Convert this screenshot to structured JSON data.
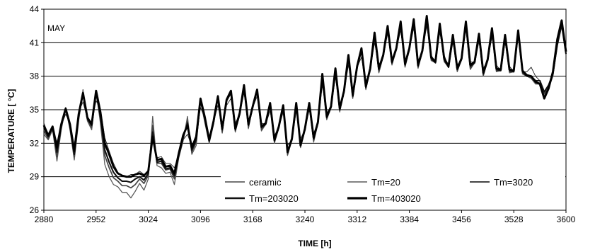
{
  "chart_data": {
    "type": "line",
    "title": "",
    "annotation": "MAY",
    "xlabel": "TIME [h]",
    "ylabel": "TEMPERATURE [ °C]",
    "xlim": [
      2880,
      3600
    ],
    "ylim": [
      26,
      44
    ],
    "xticks": [
      2880,
      2952,
      3024,
      3096,
      3168,
      3240,
      3312,
      3384,
      3456,
      3528,
      3600
    ],
    "yticks": [
      26,
      29,
      32,
      35,
      38,
      41,
      44
    ],
    "grid": "horizontal",
    "legend_position": "bottom-inside",
    "base": {
      "x": [
        2880,
        2886,
        2892,
        2898,
        2904,
        2910,
        2916,
        2922,
        2928,
        2934,
        2940,
        2946,
        2952,
        2958,
        2964,
        2970,
        2976,
        2982,
        2988,
        2994,
        3000,
        3006,
        3012,
        3018,
        3024,
        3030,
        3036,
        3042,
        3048,
        3054,
        3060,
        3066,
        3072,
        3078,
        3084,
        3090,
        3096,
        3102,
        3108,
        3114,
        3120,
        3126,
        3132,
        3138,
        3144,
        3150,
        3156,
        3162,
        3168,
        3174,
        3180,
        3186,
        3192,
        3198,
        3204,
        3210,
        3216,
        3222,
        3228,
        3234,
        3240,
        3246,
        3252,
        3258,
        3264,
        3270,
        3276,
        3282,
        3288,
        3294,
        3300,
        3306,
        3312,
        3318,
        3324,
        3330,
        3336,
        3342,
        3348,
        3354,
        3360,
        3366,
        3372,
        3378,
        3384,
        3390,
        3396,
        3402,
        3408,
        3414,
        3420,
        3426,
        3432,
        3438,
        3444,
        3450,
        3456,
        3462,
        3468,
        3474,
        3480,
        3486,
        3492,
        3498,
        3504,
        3510,
        3516,
        3522,
        3528,
        3534,
        3540,
        3546,
        3552,
        3558,
        3564,
        3570,
        3576,
        3582,
        3588,
        3594,
        3600
      ],
      "y": [
        33.4,
        32.6,
        33.4,
        31.6,
        33.6,
        35.0,
        33.6,
        31.2,
        34.5,
        36.2,
        34.2,
        33.6,
        36.4,
        34.6,
        31.7,
        30.8,
        29.9,
        29.3,
        29.0,
        29.0,
        29.1,
        29.2,
        29.2,
        29.0,
        29.4,
        32.6,
        30.4,
        30.6,
        29.9,
        30.0,
        29.4,
        31.0,
        32.5,
        33.6,
        31.4,
        32.4,
        35.8,
        34.2,
        32.2,
        33.9,
        36.0,
        33.2,
        35.8,
        36.4,
        33.2,
        34.6,
        37.0,
        33.6,
        35.2,
        36.6,
        33.4,
        33.7,
        35.4,
        32.2,
        33.4,
        35.2,
        31.2,
        32.3,
        35.4,
        31.8,
        33.2,
        35.4,
        32.4,
        33.8,
        37.9,
        34.3,
        35.2,
        38.4,
        35.0,
        36.6,
        39.6,
        36.2,
        38.8,
        40.2,
        37.0,
        38.6,
        41.6,
        38.6,
        39.8,
        42.2,
        39.2,
        40.4,
        42.6,
        39.0,
        40.4,
        42.8,
        38.9,
        40.2,
        43.1,
        39.6,
        39.2,
        42.4,
        39.5,
        38.8,
        41.4,
        38.6,
        39.5,
        42.6,
        38.9,
        39.2,
        41.5,
        38.2,
        39.4,
        42.0,
        38.6,
        38.5,
        41.4,
        38.5,
        38.4,
        41.8,
        38.4,
        38.0,
        38.0,
        37.6,
        37.6,
        36.6,
        37.2,
        38.2,
        40.8,
        42.6,
        40.0
      ]
    },
    "series": [
      {
        "name": "ceramic",
        "color": "#222222",
        "width": 0.9,
        "offsets": [
          0.4,
          0.1,
          0.0,
          0.5,
          0.0,
          -0.4,
          0.2,
          0.6,
          0.3,
          -0.5,
          0.0,
          0.3,
          -0.6,
          0.5,
          0.8,
          0.5,
          0.3,
          0.1,
          0.0,
          0.0,
          0.1,
          0.0,
          0.3,
          0.2,
          0.0,
          -0.3,
          0.3,
          0.2,
          0.3,
          0.2,
          0.4,
          0.0,
          -0.2,
          -0.8,
          0.3,
          0.0,
          -0.6,
          0.0,
          0.3,
          0.0,
          -0.6,
          0.4,
          -0.4,
          -0.4,
          0.6,
          0.0,
          -0.5,
          0.4,
          0.0,
          -0.4,
          0.4,
          0.0,
          -0.5,
          0.5,
          0.0,
          -0.4,
          0.6,
          0.0,
          -0.5,
          0.6,
          0.0,
          -0.4,
          0.5,
          0.0,
          -0.7,
          0.4,
          0.0,
          -0.5,
          0.4,
          0.0,
          -0.6,
          0.5,
          0.0,
          -0.5,
          0.5,
          0.0,
          -0.6,
          0.4,
          0.0,
          -0.4,
          0.4,
          0.0,
          -0.5,
          0.4,
          0.0,
          -0.5,
          0.5,
          0.0,
          -0.6,
          0.3,
          0.0,
          -0.5,
          0.4,
          0.0,
          -0.4,
          0.4,
          0.0,
          -0.4,
          0.4,
          0.0,
          -0.4,
          0.5,
          0.0,
          -0.5,
          0.4,
          0.0,
          -0.4,
          0.4,
          0.0,
          0.2,
          0.0,
          0.4,
          0.8,
          0.4,
          0.0,
          -0.2,
          -0.4,
          0.0
        ]
      },
      {
        "name": "Tm=20",
        "color": "#5a5a5a",
        "width": 1.3,
        "offsets": [
          -0.6,
          -0.3,
          -0.2,
          -1.2,
          -0.4,
          0.2,
          -0.4,
          -0.7,
          -0.5,
          0.6,
          -0.2,
          -0.4,
          0.3,
          -0.8,
          -1.6,
          -1.8,
          -1.6,
          -1.2,
          -1.4,
          -1.4,
          -2.0,
          -1.5,
          -0.8,
          -1.2,
          -0.6,
          1.8,
          -0.4,
          -0.8,
          -0.6,
          -0.6,
          -1.1,
          -0.3,
          -0.3,
          0.8,
          -0.4,
          -0.6,
          0.0,
          -0.4,
          -0.2,
          -0.2,
          0.3,
          -0.3,
          0.1,
          0.3,
          -0.2,
          0.0,
          0.2,
          -0.3,
          0.2,
          0.2,
          -0.3,
          0.0,
          0.2,
          -0.2,
          0.0,
          0.2,
          -0.3,
          0.0,
          0.2,
          -0.2,
          0.0,
          0.2,
          -0.3,
          0.0,
          0.2,
          -0.2,
          0.0,
          0.2,
          -0.2,
          0.0,
          0.2,
          -0.2,
          0.0,
          0.3,
          -0.2,
          0.0,
          0.2,
          -0.3,
          0.0,
          0.2,
          -0.2,
          0.0,
          0.2,
          -0.2,
          0.0,
          0.2,
          -0.2,
          0.0,
          0.3,
          -0.2,
          0.0,
          0.2,
          -0.2,
          0.0,
          0.2,
          -0.2,
          0.0,
          0.2,
          -0.3,
          0.0,
          0.2,
          -0.2,
          0.0,
          0.2,
          -0.2,
          0.0,
          0.2,
          -0.2,
          0.0,
          0.2,
          -0.2,
          0.0,
          -0.2,
          -0.3,
          -0.3,
          -0.4,
          -0.3,
          -0.2,
          0.0,
          0.3,
          0.0
        ]
      },
      {
        "name": "Tm=3020",
        "color": "#444444",
        "width": 1.7,
        "offsets": [
          -0.3,
          -0.2,
          -0.1,
          -0.8,
          -0.2,
          0.1,
          -0.2,
          -0.4,
          -0.3,
          0.3,
          -0.1,
          -0.2,
          0.2,
          -0.4,
          -0.8,
          -1.0,
          -1.0,
          -0.7,
          -0.8,
          -0.8,
          -1.1,
          -0.9,
          -0.4,
          -0.6,
          -0.3,
          1.0,
          -0.2,
          -0.4,
          -0.3,
          -0.3,
          -0.6,
          -0.2,
          -0.2,
          0.4,
          -0.2,
          -0.3,
          0.0,
          -0.2,
          -0.1,
          -0.1,
          0.2,
          -0.2,
          0.1,
          0.2,
          -0.1,
          0.0,
          0.1,
          -0.2,
          0.1,
          0.1,
          -0.2,
          0.0,
          0.1,
          -0.1,
          0.0,
          0.1,
          -0.2,
          0.0,
          0.1,
          -0.1,
          0.0,
          0.1,
          -0.2,
          0.0,
          0.1,
          -0.1,
          0.0,
          0.1,
          -0.1,
          0.0,
          0.1,
          -0.1,
          0.0,
          0.2,
          -0.1,
          0.0,
          0.1,
          -0.2,
          0.0,
          0.1,
          -0.1,
          0.0,
          0.1,
          -0.1,
          0.0,
          0.1,
          -0.1,
          0.0,
          0.2,
          -0.1,
          0.0,
          0.1,
          -0.1,
          0.0,
          0.1,
          -0.1,
          0.0,
          0.1,
          -0.2,
          0.0,
          0.1,
          -0.1,
          0.0,
          0.1,
          -0.1,
          0.0,
          0.1,
          -0.1,
          0.0,
          0.1,
          -0.1,
          0.0,
          -0.1,
          -0.2,
          -0.2,
          -0.2,
          -0.2,
          -0.1,
          0.0,
          0.2,
          0.0
        ]
      },
      {
        "name": "Tm=203020",
        "color": "#111111",
        "width": 2.1,
        "offsets": [
          0.0,
          0.0,
          0.0,
          -0.4,
          0.0,
          0.0,
          0.0,
          -0.2,
          0.0,
          0.2,
          0.0,
          0.0,
          0.1,
          -0.2,
          -0.3,
          -0.5,
          -0.5,
          -0.4,
          -0.4,
          -0.4,
          -0.6,
          -0.4,
          -0.2,
          -0.3,
          -0.1,
          0.4,
          -0.1,
          -0.2,
          -0.2,
          -0.2,
          -0.3,
          -0.1,
          0.0,
          0.2,
          0.0,
          -0.1,
          0.0,
          0.0,
          0.0,
          0.0,
          0.1,
          0.0,
          0.0,
          0.1,
          0.0,
          0.0,
          0.1,
          0.0,
          0.0,
          0.1,
          0.0,
          0.0,
          0.1,
          0.0,
          0.0,
          0.1,
          0.0,
          0.0,
          0.1,
          0.0,
          0.0,
          0.1,
          0.0,
          0.0,
          0.1,
          0.0,
          0.0,
          0.1,
          0.0,
          0.0,
          0.1,
          0.0,
          0.0,
          0.1,
          0.0,
          0.0,
          0.1,
          0.0,
          0.0,
          0.1,
          0.0,
          0.0,
          0.1,
          0.0,
          0.0,
          0.1,
          0.0,
          0.0,
          0.1,
          0.0,
          0.0,
          0.1,
          0.0,
          0.0,
          0.1,
          0.0,
          0.0,
          0.1,
          0.0,
          0.0,
          0.1,
          0.0,
          0.0,
          0.1,
          0.0,
          0.0,
          0.1,
          0.0,
          0.0,
          0.1,
          0.0,
          0.0,
          0.0,
          0.0,
          0.0,
          0.0,
          0.0,
          0.0,
          0.0,
          0.0,
          0.0
        ]
      },
      {
        "name": "Tm=403020",
        "color": "#000000",
        "width": 2.9,
        "offsets": [
          0.2,
          0.1,
          0.1,
          0.0,
          0.1,
          0.1,
          0.1,
          0.1,
          0.1,
          0.3,
          0.1,
          0.1,
          0.3,
          0.2,
          0.3,
          0.2,
          0.0,
          0.0,
          0.1,
          0.0,
          -0.1,
          0.0,
          0.1,
          0.1,
          0.1,
          0.0,
          0.1,
          0.0,
          0.0,
          0.0,
          -0.1,
          0.1,
          0.2,
          0.0,
          0.2,
          0.2,
          0.2,
          0.1,
          0.1,
          0.1,
          0.2,
          0.1,
          0.1,
          0.3,
          0.1,
          0.1,
          0.2,
          0.1,
          0.1,
          0.2,
          0.1,
          0.1,
          0.2,
          0.1,
          0.1,
          0.2,
          0.0,
          0.1,
          0.2,
          0.0,
          0.1,
          0.2,
          0.1,
          0.1,
          0.3,
          0.1,
          0.1,
          0.3,
          0.1,
          0.1,
          0.3,
          0.1,
          0.1,
          0.3,
          0.1,
          0.1,
          0.3,
          0.1,
          0.1,
          0.3,
          0.1,
          0.1,
          0.3,
          0.1,
          0.1,
          0.3,
          0.1,
          0.1,
          0.3,
          0.1,
          0.1,
          0.3,
          0.1,
          0.1,
          0.3,
          0.1,
          0.1,
          0.3,
          0.1,
          0.1,
          0.3,
          0.1,
          0.1,
          0.3,
          0.1,
          0.1,
          0.3,
          0.1,
          0.1,
          0.3,
          0.1,
          0.1,
          0.0,
          -0.1,
          -0.3,
          -0.6,
          -0.3,
          0.2,
          0.5,
          0.4,
          0.2
        ]
      }
    ]
  }
}
